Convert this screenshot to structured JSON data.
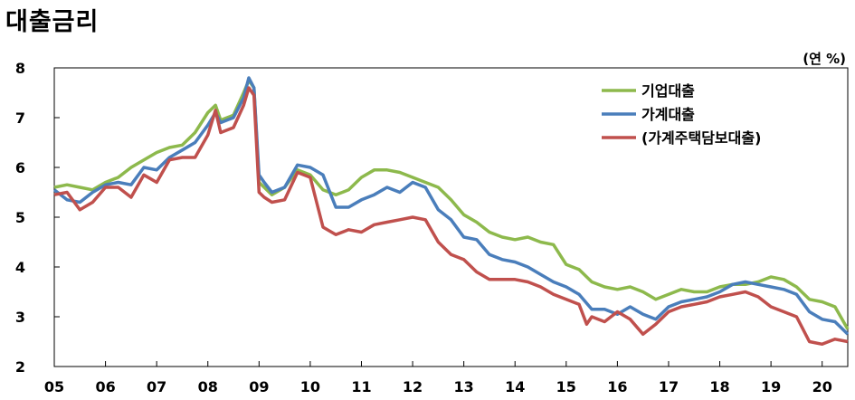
{
  "title": "대출금리",
  "unit": "(연 %)",
  "colors": {
    "corporate": "#8DB94C",
    "household": "#4A7EBB",
    "mortgage": "#C0504D"
  },
  "chart_data": {
    "type": "line",
    "title": "대출금리",
    "ylabel": "(연 %)",
    "xlim": [
      2005.0,
      2020.5
    ],
    "ylim": [
      2,
      8
    ],
    "yticks": [
      "2",
      "3",
      "4",
      "5",
      "6",
      "7",
      "8"
    ],
    "xticks": [
      "05",
      "06",
      "07",
      "08",
      "09",
      "10",
      "11",
      "12",
      "13",
      "14",
      "15",
      "16",
      "17",
      "18",
      "19",
      "20"
    ],
    "legend_position": "top-right",
    "grid": false,
    "series": [
      {
        "name": "기업대출",
        "color": "#8DB94C",
        "x": [
          2005.0,
          2005.25,
          2005.5,
          2005.75,
          2006.0,
          2006.25,
          2006.5,
          2006.75,
          2007.0,
          2007.25,
          2007.5,
          2007.75,
          2008.0,
          2008.15,
          2008.25,
          2008.5,
          2008.7,
          2008.8,
          2008.9,
          2009.0,
          2009.1,
          2009.25,
          2009.5,
          2009.75,
          2010.0,
          2010.25,
          2010.5,
          2010.75,
          2011.0,
          2011.25,
          2011.5,
          2011.75,
          2012.0,
          2012.25,
          2012.5,
          2012.75,
          2013.0,
          2013.25,
          2013.5,
          2013.75,
          2014.0,
          2014.25,
          2014.5,
          2014.75,
          2015.0,
          2015.25,
          2015.5,
          2015.75,
          2016.0,
          2016.25,
          2016.5,
          2016.75,
          2017.0,
          2017.25,
          2017.5,
          2017.75,
          2018.0,
          2018.25,
          2018.5,
          2018.75,
          2019.0,
          2019.25,
          2019.5,
          2019.75,
          2020.0,
          2020.25,
          2020.5
        ],
        "y": [
          5.6,
          5.65,
          5.6,
          5.55,
          5.7,
          5.8,
          6.0,
          6.15,
          6.3,
          6.4,
          6.45,
          6.7,
          7.1,
          7.25,
          6.95,
          7.05,
          7.5,
          7.75,
          7.6,
          5.7,
          5.6,
          5.45,
          5.6,
          5.95,
          5.85,
          5.55,
          5.45,
          5.55,
          5.8,
          5.95,
          5.95,
          5.9,
          5.8,
          5.7,
          5.6,
          5.35,
          5.05,
          4.9,
          4.7,
          4.6,
          4.55,
          4.6,
          4.5,
          4.45,
          4.05,
          3.95,
          3.7,
          3.6,
          3.55,
          3.6,
          3.5,
          3.35,
          3.45,
          3.55,
          3.5,
          3.5,
          3.6,
          3.65,
          3.65,
          3.7,
          3.8,
          3.75,
          3.6,
          3.35,
          3.3,
          3.2,
          2.75
        ]
      },
      {
        "name": "가계대출",
        "color": "#4A7EBB",
        "x": [
          2005.0,
          2005.25,
          2005.5,
          2005.75,
          2006.0,
          2006.25,
          2006.5,
          2006.75,
          2007.0,
          2007.25,
          2007.5,
          2007.75,
          2008.0,
          2008.15,
          2008.25,
          2008.5,
          2008.7,
          2008.8,
          2008.9,
          2009.0,
          2009.1,
          2009.25,
          2009.5,
          2009.75,
          2010.0,
          2010.25,
          2010.5,
          2010.75,
          2011.0,
          2011.25,
          2011.5,
          2011.75,
          2012.0,
          2012.25,
          2012.5,
          2012.75,
          2013.0,
          2013.25,
          2013.5,
          2013.75,
          2014.0,
          2014.25,
          2014.5,
          2014.75,
          2015.0,
          2015.25,
          2015.5,
          2015.75,
          2016.0,
          2016.25,
          2016.5,
          2016.75,
          2017.0,
          2017.25,
          2017.5,
          2017.75,
          2018.0,
          2018.25,
          2018.5,
          2018.75,
          2019.0,
          2019.25,
          2019.5,
          2019.75,
          2020.0,
          2020.25,
          2020.5
        ],
        "y": [
          5.55,
          5.35,
          5.3,
          5.5,
          5.65,
          5.7,
          5.65,
          6.0,
          5.95,
          6.2,
          6.35,
          6.5,
          6.85,
          7.1,
          6.9,
          7.0,
          7.4,
          7.8,
          7.6,
          5.85,
          5.7,
          5.5,
          5.6,
          6.05,
          6.0,
          5.85,
          5.2,
          5.2,
          5.35,
          5.45,
          5.6,
          5.5,
          5.7,
          5.6,
          5.15,
          4.95,
          4.6,
          4.55,
          4.25,
          4.15,
          4.1,
          4.0,
          3.85,
          3.7,
          3.6,
          3.45,
          3.15,
          3.15,
          3.05,
          3.2,
          3.05,
          2.95,
          3.2,
          3.3,
          3.35,
          3.4,
          3.5,
          3.65,
          3.7,
          3.65,
          3.6,
          3.55,
          3.45,
          3.1,
          2.95,
          2.9,
          2.65
        ]
      },
      {
        "name": "(가계주택담보대출)",
        "color": "#C0504D",
        "x": [
          2005.0,
          2005.25,
          2005.5,
          2005.75,
          2006.0,
          2006.25,
          2006.5,
          2006.75,
          2007.0,
          2007.25,
          2007.5,
          2007.75,
          2008.0,
          2008.15,
          2008.25,
          2008.5,
          2008.7,
          2008.8,
          2008.9,
          2009.0,
          2009.1,
          2009.25,
          2009.5,
          2009.75,
          2010.0,
          2010.25,
          2010.5,
          2010.75,
          2011.0,
          2011.25,
          2011.5,
          2011.75,
          2012.0,
          2012.25,
          2012.5,
          2012.75,
          2013.0,
          2013.25,
          2013.5,
          2013.75,
          2014.0,
          2014.25,
          2014.5,
          2014.75,
          2015.0,
          2015.25,
          2015.4,
          2015.5,
          2015.75,
          2016.0,
          2016.25,
          2016.5,
          2016.75,
          2017.0,
          2017.25,
          2017.5,
          2017.75,
          2018.0,
          2018.25,
          2018.5,
          2018.75,
          2019.0,
          2019.25,
          2019.5,
          2019.75,
          2020.0,
          2020.25,
          2020.5
        ],
        "y": [
          5.45,
          5.5,
          5.15,
          5.3,
          5.6,
          5.6,
          5.4,
          5.85,
          5.7,
          6.15,
          6.2,
          6.2,
          6.65,
          7.15,
          6.7,
          6.8,
          7.25,
          7.6,
          7.45,
          5.5,
          5.4,
          5.3,
          5.35,
          5.9,
          5.8,
          4.8,
          4.65,
          4.75,
          4.7,
          4.85,
          4.9,
          4.95,
          5.0,
          4.95,
          4.5,
          4.25,
          4.15,
          3.9,
          3.75,
          3.75,
          3.75,
          3.7,
          3.6,
          3.45,
          3.35,
          3.25,
          2.85,
          3.0,
          2.9,
          3.1,
          2.95,
          2.65,
          2.85,
          3.1,
          3.2,
          3.25,
          3.3,
          3.4,
          3.45,
          3.5,
          3.4,
          3.2,
          3.1,
          3.0,
          2.5,
          2.45,
          2.55,
          2.5
        ]
      }
    ]
  }
}
